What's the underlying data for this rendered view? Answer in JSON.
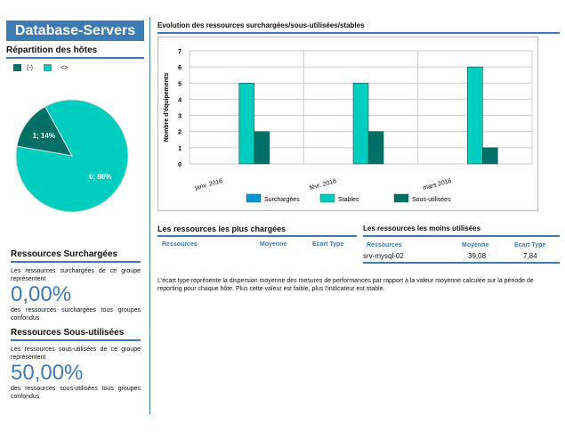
{
  "header": {
    "title": "Database-Servers"
  },
  "repartition": {
    "title": "Répartition des hôtes",
    "legend": [
      {
        "label": "(-)",
        "color": "#006f65"
      },
      {
        "label": "<>",
        "color": "#00cdbe"
      }
    ],
    "slices": [
      {
        "label": "1; 14%",
        "value": 1,
        "color": "#006f65"
      },
      {
        "label": "6; 86%",
        "value": 6,
        "color": "#00cdbe"
      }
    ]
  },
  "surchargees": {
    "title": "Ressources Surchargées",
    "intro": "Les ressources surchargées de ce groupe représentent",
    "value": "0,00%",
    "outro": "des ressources surchargées tous groupes confondus"
  },
  "sous_utilisees": {
    "title": "Ressources Sous-utilisées",
    "intro": "Les ressources sous-utilisées de ce groupe représentent",
    "value": "50,00%",
    "outro": "des ressources sous-utilisées tous groupes confondus"
  },
  "chart_section": {
    "title": "Evolution des ressources surchargées/sous-utilisées/stables"
  },
  "chart_data": {
    "type": "bar",
    "ylabel": "Nombre d'équipements",
    "xlabel": "",
    "ylim": [
      0,
      7
    ],
    "yticks": [
      "0",
      "1",
      "2",
      "3",
      "4",
      "5",
      "6",
      "7"
    ],
    "categories": [
      "janv. 2016",
      "févr. 2016",
      "mars 2016"
    ],
    "series": [
      {
        "name": "Surchargées",
        "values": [
          0,
          0,
          0
        ],
        "color": "#0096d6"
      },
      {
        "name": "Stables",
        "values": [
          5,
          5,
          6
        ],
        "color": "#00cdbe"
      },
      {
        "name": "Sous-utilisées",
        "values": [
          2,
          2,
          1
        ],
        "color": "#006f65"
      }
    ],
    "grid": true,
    "legend_position": "bottom"
  },
  "plus_chargees": {
    "title": "Les ressources les plus chargées",
    "columns": [
      "Ressources",
      "Moyenne",
      "Ecart Type"
    ],
    "rows": []
  },
  "moins_utilisees": {
    "title": "Les ressources les moins utilisées",
    "columns": [
      "Ressources",
      "Moyenne",
      "Ecart Type"
    ],
    "rows": [
      [
        "srv-mysql-02",
        "39,08",
        "7,84"
      ]
    ]
  },
  "note": "L'écart type représente la dispersion moyenne des mesures de performances par rapport à la valeur moyenne calculée sur la période de reporting pour chaque hôte. Plus cette valeur est faible, plus l'indicateur est stable."
}
